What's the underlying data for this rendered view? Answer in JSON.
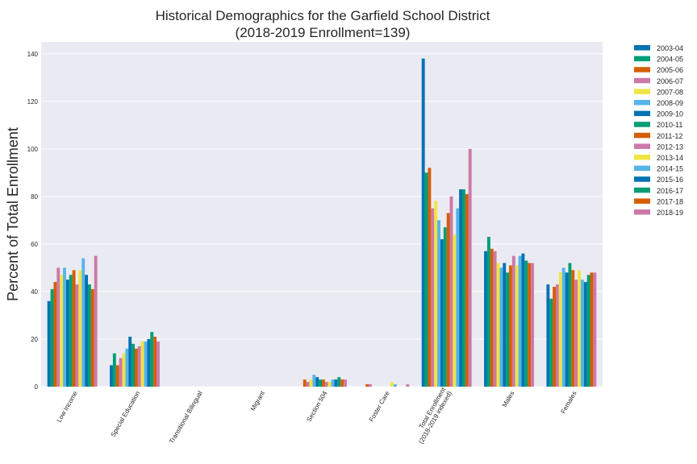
{
  "chart_data": {
    "type": "bar",
    "title": "Historical Demographics for the Garfield School District",
    "subtitle": "(2018-2019 Enrollment=139)",
    "xlabel": "",
    "ylabel": "Percent of Total Enrollment",
    "ylim": [
      0,
      145
    ],
    "yticks": [
      0,
      20,
      40,
      60,
      80,
      100,
      120,
      140
    ],
    "grid": true,
    "legend_position": "outside-top-right",
    "categories": [
      "Low Income",
      "Special Education",
      "Transitional Bilingual",
      "Migrant",
      "Section 504",
      "Foster Care",
      "Total Enrollment\n(2018-2019 indexed)",
      "Males",
      "Females"
    ],
    "colors": [
      "#0072b2",
      "#009e73",
      "#d55e00",
      "#cc79a7",
      "#f0e442",
      "#56b4e9"
    ],
    "series": [
      {
        "name": "2003-04",
        "values": [
          36,
          9,
          0,
          0,
          0,
          0,
          138,
          57,
          43
        ]
      },
      {
        "name": "2004-05",
        "values": [
          41,
          14,
          0,
          0,
          0,
          0,
          90,
          63,
          37
        ]
      },
      {
        "name": "2005-06",
        "values": [
          44,
          9,
          0,
          0,
          3,
          1,
          92,
          58,
          42
        ]
      },
      {
        "name": "2006-07",
        "values": [
          50,
          12,
          0,
          0,
          2,
          1,
          75,
          57,
          43
        ]
      },
      {
        "name": "2007-08",
        "values": [
          47,
          14,
          0,
          0,
          3,
          0,
          78,
          52,
          48
        ]
      },
      {
        "name": "2008-09",
        "values": [
          50,
          16,
          0,
          0,
          5,
          0,
          70,
          50,
          50
        ]
      },
      {
        "name": "2009-10",
        "values": [
          45,
          21,
          0,
          0,
          4,
          0,
          62,
          52,
          48
        ]
      },
      {
        "name": "2010-11",
        "values": [
          47,
          18,
          0,
          0,
          3,
          0,
          67,
          48,
          52
        ]
      },
      {
        "name": "2011-12",
        "values": [
          49,
          16,
          0,
          0,
          3,
          0,
          73,
          51,
          49
        ]
      },
      {
        "name": "2012-13",
        "values": [
          43,
          17,
          0,
          0,
          2,
          0,
          80,
          55,
          45
        ]
      },
      {
        "name": "2013-14",
        "values": [
          49,
          19,
          0,
          0,
          2,
          2,
          64,
          51,
          49
        ]
      },
      {
        "name": "2014-15",
        "values": [
          54,
          19,
          0,
          0,
          3,
          1,
          75,
          55,
          45
        ]
      },
      {
        "name": "2015-16",
        "values": [
          47,
          20,
          0,
          0,
          3,
          0,
          83,
          56,
          44
        ]
      },
      {
        "name": "2016-17",
        "values": [
          43,
          23,
          0,
          0,
          4,
          0,
          83,
          53,
          47
        ]
      },
      {
        "name": "2017-18",
        "values": [
          41,
          21,
          0,
          0,
          3,
          0,
          81,
          52,
          48
        ]
      },
      {
        "name": "2018-19",
        "values": [
          55,
          19,
          0,
          0,
          3,
          1,
          100,
          52,
          48
        ]
      }
    ]
  }
}
